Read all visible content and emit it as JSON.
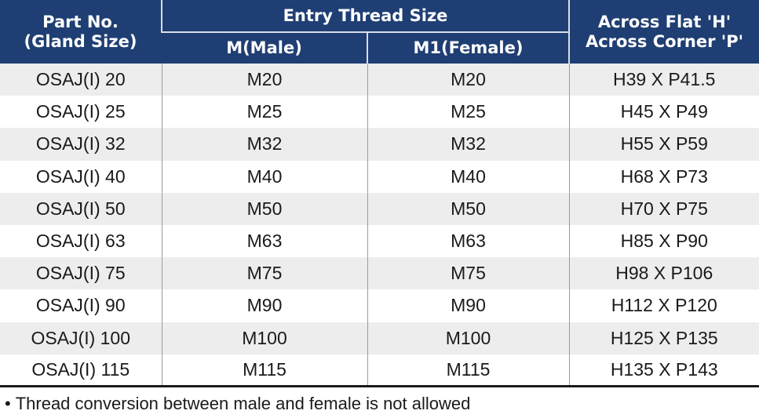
{
  "table": {
    "headers": {
      "part_no": [
        "Part No.",
        "(Gland Size)"
      ],
      "entry_thread": "Entry Thread Size",
      "male": "M(Male)",
      "female": "M1(Female)",
      "across": [
        "Across Flat 'H'",
        "Across Corner 'P'"
      ]
    },
    "rows": [
      [
        "OSAJ(I) 20",
        "M20",
        "M20",
        "H39 X P41.5"
      ],
      [
        "OSAJ(I) 25",
        "M25",
        "M25",
        "H45 X P49"
      ],
      [
        "OSAJ(I) 32",
        "M32",
        "M32",
        "H55 X P59"
      ],
      [
        "OSAJ(I) 40",
        "M40",
        "M40",
        "H68 X P73"
      ],
      [
        "OSAJ(I) 50",
        "M50",
        "M50",
        "H70 X P75"
      ],
      [
        "OSAJ(I) 63",
        "M63",
        "M63",
        "H85 X P90"
      ],
      [
        "OSAJ(I) 75",
        "M75",
        "M75",
        "H98 X P106"
      ],
      [
        "OSAJ(I) 90",
        "M90",
        "M90",
        "H112 X P120"
      ],
      [
        "OSAJ(I) 100",
        "M100",
        "M100",
        "H125 X P135"
      ],
      [
        "OSAJ(I) 115",
        "M115",
        "M115",
        "H135 X P143"
      ]
    ]
  },
  "footnote": {
    "bullet": "•",
    "text": "Thread conversion between male and female is not allowed"
  },
  "colors": {
    "header_bg": "#1f3e73",
    "header_text": "#ffffff",
    "row_stripe": "#ededed"
  }
}
